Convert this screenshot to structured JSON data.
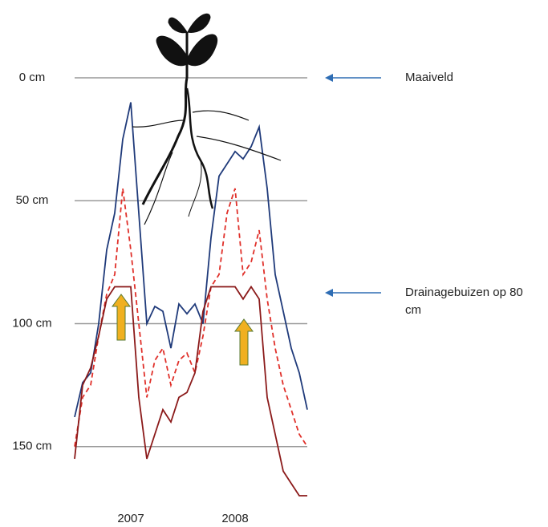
{
  "chart_data": {
    "type": "line",
    "categories": [
      null,
      null,
      null,
      null,
      null,
      null,
      null,
      "2007",
      null,
      null,
      null,
      null,
      null,
      null,
      null,
      null,
      null,
      null,
      null,
      null,
      "2008",
      null,
      null,
      null,
      null,
      null,
      null,
      null,
      null,
      null
    ],
    "y_inverted": true,
    "ylim": [
      0,
      170
    ],
    "yticks": [
      {
        "value": 0,
        "label": "0 cm"
      },
      {
        "value": 50,
        "label": "50 cm"
      },
      {
        "value": 100,
        "label": "100 cm"
      },
      {
        "value": 150,
        "label": "150 cm"
      }
    ],
    "grid": true,
    "series": [
      {
        "color": "#1f3a7a",
        "dash": false,
        "values": [
          138,
          124,
          120,
          100,
          70,
          55,
          25,
          10,
          55,
          100,
          93,
          95,
          110,
          92,
          96,
          92,
          100,
          65,
          40,
          35,
          30,
          33,
          28,
          20,
          45,
          80,
          95,
          110,
          120,
          135
        ]
      },
      {
        "color": "#e0302a",
        "dash": true,
        "values": [
          150,
          130,
          125,
          105,
          88,
          80,
          45,
          70,
          100,
          130,
          115,
          110,
          125,
          115,
          112,
          120,
          105,
          85,
          80,
          55,
          45,
          80,
          75,
          62,
          90,
          110,
          125,
          135,
          145,
          150
        ]
      },
      {
        "color": "#8b1a1a",
        "dash": false,
        "values": [
          155,
          125,
          118,
          105,
          90,
          85,
          85,
          85,
          130,
          155,
          145,
          135,
          140,
          130,
          128,
          120,
          95,
          85,
          85,
          85,
          85,
          90,
          85,
          90,
          130,
          145,
          160,
          165,
          170,
          170
        ]
      }
    ],
    "annotations": [
      "Maaiveld",
      "Drainagebuizen op 80 cm"
    ]
  }
}
